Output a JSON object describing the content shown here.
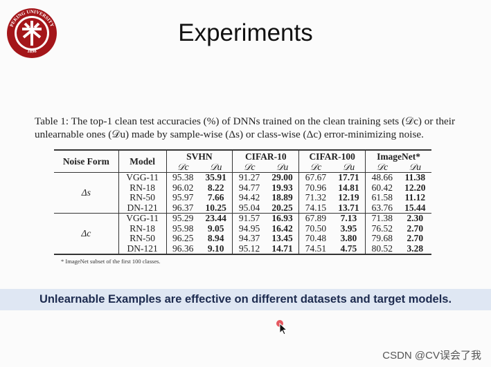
{
  "logo": {
    "text": "PEKING UNIVERSITY",
    "year": "1898"
  },
  "title": "Experiments",
  "caption": "Table 1: The top-1 clean test accuracies (%) of DNNs trained on the clean training sets (𝒟c) or their unlearnable ones (𝒟u) made by sample-wise (Δs) or class-wise (Δc) error-minimizing noise.",
  "table": {
    "columns": [
      "Noise Form",
      "Model"
    ],
    "datasets": [
      "SVHN",
      "CIFAR-10",
      "CIFAR-100",
      "ImageNet*"
    ],
    "subheaders": [
      "𝒟c",
      "𝒟u"
    ],
    "groups": [
      {
        "noise": "Δs",
        "rows": [
          {
            "model": "VGG-11",
            "values": [
              "95.38",
              "35.91",
              "91.27",
              "29.00",
              "67.67",
              "17.71",
              "48.66",
              "11.38"
            ]
          },
          {
            "model": "RN-18",
            "values": [
              "96.02",
              "8.22",
              "94.77",
              "19.93",
              "70.96",
              "14.81",
              "60.42",
              "12.20"
            ]
          },
          {
            "model": "RN-50",
            "values": [
              "95.97",
              "7.66",
              "94.42",
              "18.89",
              "71.32",
              "12.19",
              "61.58",
              "11.12"
            ]
          },
          {
            "model": "DN-121",
            "values": [
              "96.37",
              "10.25",
              "95.04",
              "20.25",
              "74.15",
              "13.71",
              "63.76",
              "15.44"
            ]
          }
        ]
      },
      {
        "noise": "Δc",
        "rows": [
          {
            "model": "VGG-11",
            "values": [
              "95.29",
              "23.44",
              "91.57",
              "16.93",
              "67.89",
              "7.13",
              "71.38",
              "2.30"
            ]
          },
          {
            "model": "RN-18",
            "values": [
              "95.98",
              "9.05",
              "94.95",
              "16.42",
              "70.50",
              "3.95",
              "76.52",
              "2.70"
            ]
          },
          {
            "model": "RN-50",
            "values": [
              "96.25",
              "8.94",
              "94.37",
              "13.45",
              "70.48",
              "3.80",
              "79.68",
              "2.70"
            ]
          },
          {
            "model": "DN-121",
            "values": [
              "96.36",
              "9.10",
              "95.12",
              "14.71",
              "74.51",
              "4.75",
              "80.52",
              "3.28"
            ]
          }
        ]
      }
    ],
    "footnote": "* ImageNet subset of the first 100 classes."
  },
  "banner": "Unlearnable Examples are effective on different datasets and target models.",
  "watermark": "CSDN @CV误会了我"
}
